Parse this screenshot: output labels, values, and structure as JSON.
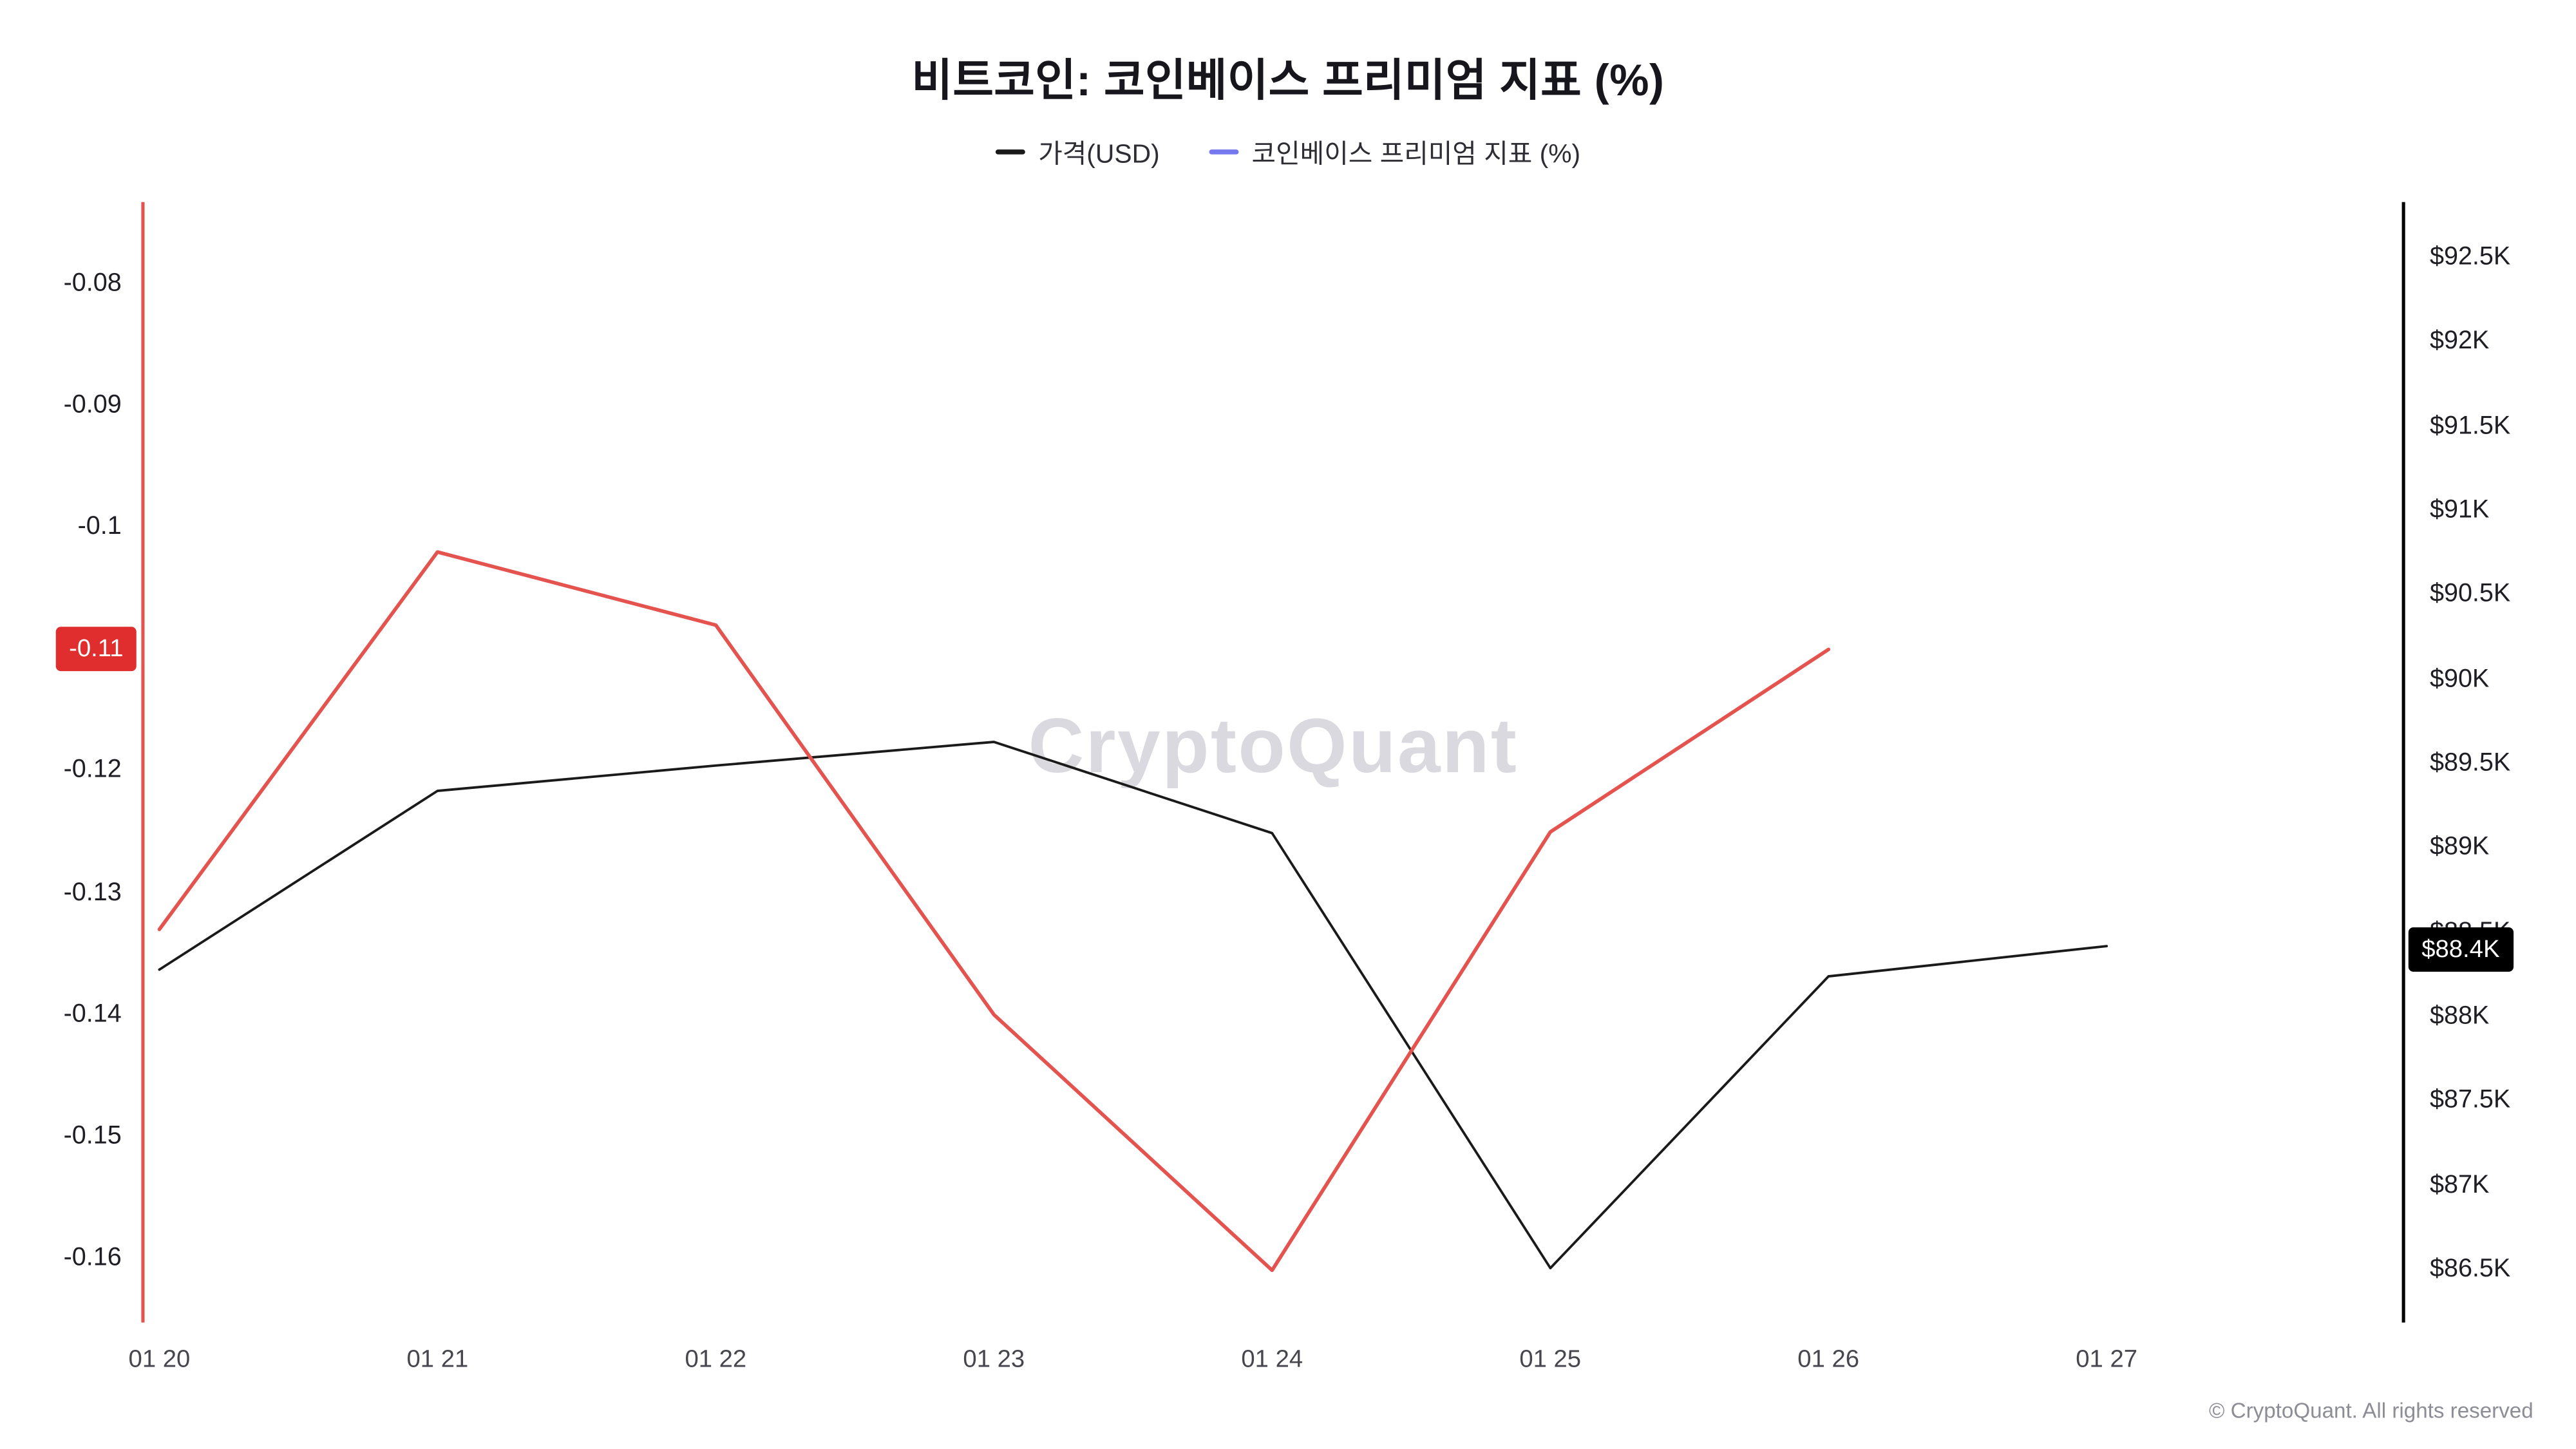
{
  "header": {
    "title": "비트코인: 코인베이스 프리미엄 지표 (%)"
  },
  "legend": {
    "items": [
      {
        "label": "가격(USD)",
        "color": "#1a1a1a"
      },
      {
        "label": "코인베이스 프리미엄 지표 (%)",
        "color": "#7678ee"
      }
    ]
  },
  "watermark": "CryptoQuant",
  "footer": "© CryptoQuant. All rights reserved",
  "chart_data": {
    "type": "line",
    "title": "비트코인: 코인베이스 프리미엄 지표 (%)",
    "grid": false,
    "legend_position": "top",
    "x_categories": [
      "01 20",
      "01 21",
      "01 22",
      "01 23",
      "01 24",
      "01 25",
      "01 26",
      "01 27"
    ],
    "series": [
      {
        "name": "가격(USD)",
        "axis": "right",
        "color": "#1a1a1a",
        "values": [
          88280,
          89340,
          89490,
          89630,
          89090,
          86510,
          88240,
          88420
        ]
      },
      {
        "name": "코인베이스 프리미엄 지표 (%)",
        "axis": "left",
        "color": "#e5534f",
        "values": [
          -0.133,
          -0.102,
          -0.108,
          -0.14,
          -0.161,
          -0.125,
          -0.11,
          null
        ]
      }
    ],
    "left_axis": {
      "ticks": [
        -0.08,
        -0.09,
        -0.1,
        -0.12,
        -0.13,
        -0.14,
        -0.15,
        -0.16
      ],
      "range": [
        -0.165,
        -0.073
      ],
      "line_color": "#e5534f",
      "current_badge": {
        "label": "-0.11",
        "value": -0.11,
        "bg": "#e02d2d",
        "text_color": "#ffffff"
      }
    },
    "right_axis": {
      "ticks": [
        {
          "label": "$92.5K",
          "value": 92500
        },
        {
          "label": "$92K",
          "value": 92000
        },
        {
          "label": "$91.5K",
          "value": 91500
        },
        {
          "label": "$91K",
          "value": 91000
        },
        {
          "label": "$90.5K",
          "value": 90500
        },
        {
          "label": "$90K",
          "value": 90000
        },
        {
          "label": "$89.5K",
          "value": 89500
        },
        {
          "label": "$89K",
          "value": 89000
        },
        {
          "label": "$88.5K",
          "value": 88500
        },
        {
          "label": "$88K",
          "value": 88000
        },
        {
          "label": "$87.5K",
          "value": 87500
        },
        {
          "label": "$87K",
          "value": 87000
        },
        {
          "label": "$86.5K",
          "value": 86500
        }
      ],
      "range": [
        86200,
        92800
      ],
      "line_color": "#000000",
      "current_badge": {
        "label": "$88.4K",
        "value": 88400,
        "bg": "#000000",
        "text_color": "#ffffff"
      }
    }
  }
}
